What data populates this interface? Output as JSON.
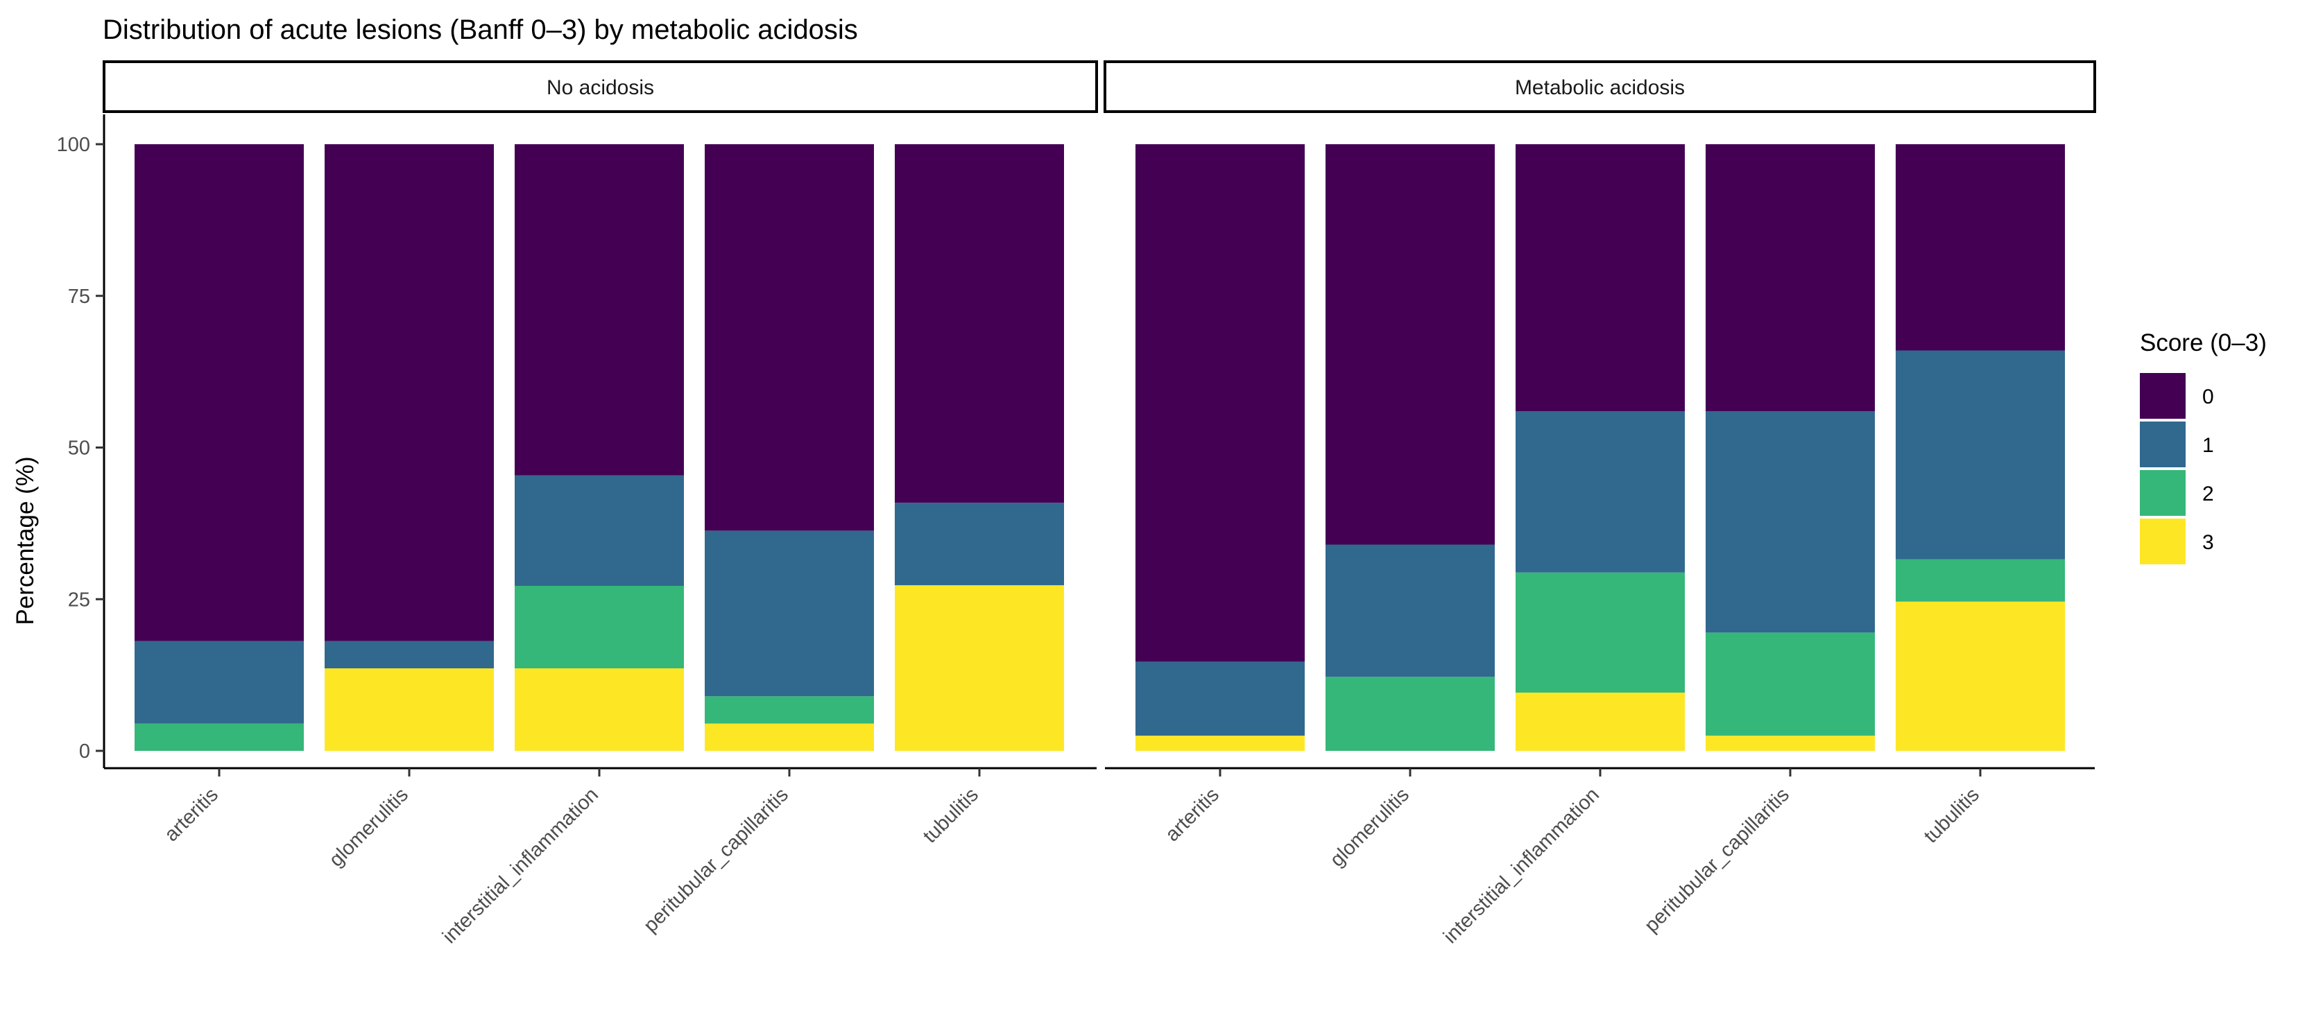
{
  "chart_data": {
    "type": "bar",
    "stacked": true,
    "title": "Distribution of acute lesions (Banff 0–3) by metabolic acidosis",
    "ylabel": "Percentage (%)",
    "xlabel": "",
    "ylim": [
      0,
      100
    ],
    "yticks": [
      0,
      25,
      50,
      75,
      100
    ],
    "categories": [
      "arteritis",
      "glomerulitis",
      "interstitial_inflammation",
      "peritubular_capillaritis",
      "tubulitis"
    ],
    "legend": {
      "title": "Score (0–3)",
      "position": "right",
      "entries": [
        {
          "label": "0",
          "color": "#440154"
        },
        {
          "label": "1",
          "color": "#31688E"
        },
        {
          "label": "2",
          "color": "#35B779"
        },
        {
          "label": "3",
          "color": "#FDE725"
        }
      ]
    },
    "panels": [
      {
        "name": "No acidosis",
        "series": [
          {
            "name": "3",
            "values": [
              0,
              13.6,
              13.6,
              4.5,
              27.3
            ]
          },
          {
            "name": "2",
            "values": [
              4.5,
              0,
              13.6,
              4.5,
              0
            ]
          },
          {
            "name": "1",
            "values": [
              13.6,
              4.5,
              18.2,
              27.3,
              13.6
            ]
          },
          {
            "name": "0",
            "values": [
              81.9,
              81.9,
              54.6,
              63.7,
              59.1
            ]
          }
        ]
      },
      {
        "name": "Metabolic acidosis",
        "series": [
          {
            "name": "3",
            "values": [
              2.5,
              0,
              9.6,
              2.5,
              24.6
            ]
          },
          {
            "name": "2",
            "values": [
              0,
              12.2,
              19.8,
              17,
              7
            ]
          },
          {
            "name": "1",
            "values": [
              12.2,
              21.8,
              26.6,
              36.5,
              34.4
            ]
          },
          {
            "name": "0",
            "values": [
              85.3,
              66,
              44,
              44,
              34
            ]
          }
        ]
      }
    ]
  }
}
